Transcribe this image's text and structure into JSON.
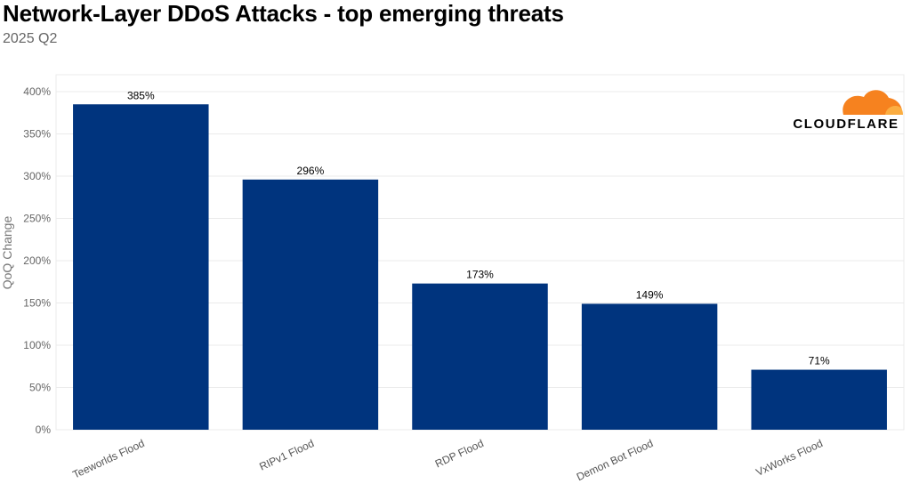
{
  "header": {
    "title": "Network-Layer DDoS Attacks - top emerging threats",
    "subtitle": "2025 Q2"
  },
  "logo": {
    "text": "CLOUDFLARE",
    "icon": "cloud-icon",
    "colors": {
      "cloud_primary": "#F6821F",
      "cloud_secondary": "#FBAD41"
    }
  },
  "colors": {
    "bar": "#00347E",
    "grid": "#EBEBEB"
  },
  "chart_data": {
    "type": "bar",
    "title": "Network-Layer DDoS Attacks - top emerging threats",
    "subtitle": "2025 Q2",
    "xlabel": "",
    "ylabel": "QoQ Change",
    "categories": [
      "Teeworlds Flood",
      "RIPv1 Flood",
      "RDP Flood",
      "Demon Bot Flood",
      "VxWorks Flood"
    ],
    "values": [
      385,
      296,
      173,
      149,
      71
    ],
    "value_labels": [
      "385%",
      "296%",
      "173%",
      "149%",
      "71%"
    ],
    "ylim": [
      0,
      420
    ],
    "y_ticks": [
      0,
      50,
      100,
      150,
      200,
      250,
      300,
      350,
      400
    ],
    "y_tick_labels": [
      "0%",
      "50%",
      "100%",
      "150%",
      "200%",
      "250%",
      "300%",
      "350%",
      "400%"
    ],
    "grid": true,
    "legend": "none"
  }
}
